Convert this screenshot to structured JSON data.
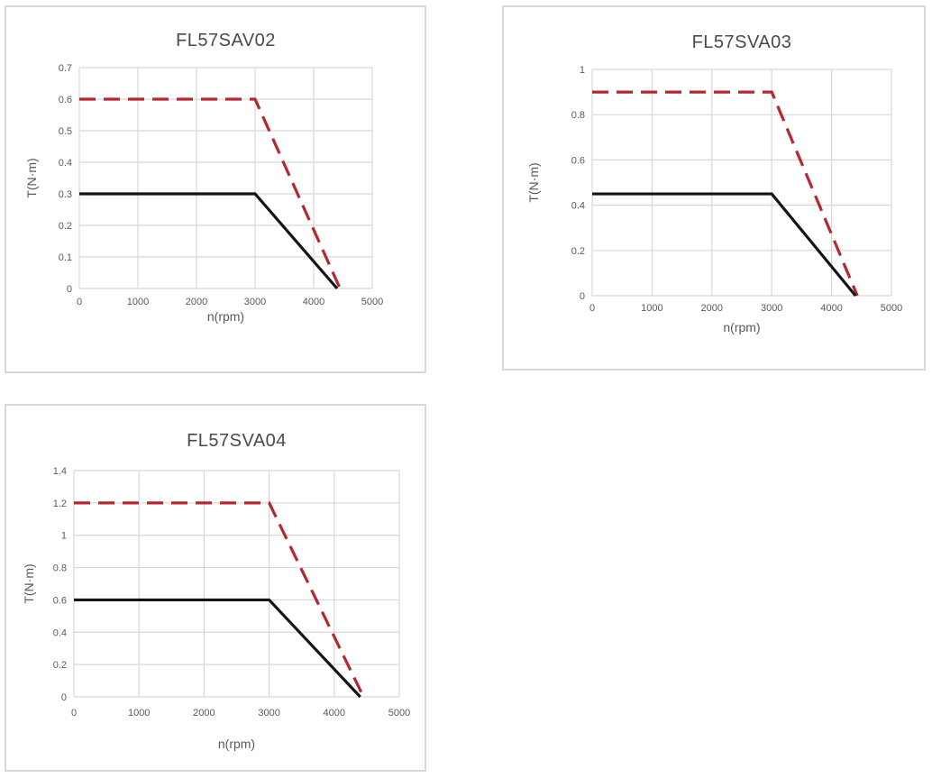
{
  "page": {
    "background": "#ffffff"
  },
  "colors": {
    "peak_line": "#b52731",
    "rated_line": "#141414",
    "grid": "#d8d8d8",
    "card_border": "#d9d9d9",
    "tick_text": "#595959",
    "title_text": "#4a4a4a"
  },
  "chart_data": [
    {
      "type": "line",
      "title": "FL57SAV02",
      "xlabel": "n(rpm)",
      "ylabel": "T(N·m)",
      "xlim": [
        0,
        5000
      ],
      "xtick_step": 1000,
      "ylim": [
        0,
        0.7
      ],
      "ytick_step": 0.1,
      "grid": true,
      "legend_position": "none",
      "series": [
        {
          "name": "peak-torque-dashed",
          "style": "dashed",
          "color_key": "peak_line",
          "points": [
            [
              0,
              0.6
            ],
            [
              3000,
              0.6
            ],
            [
              4450,
              0
            ]
          ]
        },
        {
          "name": "rated-torque-solid",
          "style": "solid",
          "color_key": "rated_line",
          "points": [
            [
              0,
              0.3
            ],
            [
              3000,
              0.3
            ],
            [
              4400,
              0
            ]
          ]
        }
      ]
    },
    {
      "type": "line",
      "title": "FL57SVA03",
      "xlabel": "n(rpm)",
      "ylabel": "T(N·m)",
      "xlim": [
        0,
        5000
      ],
      "xtick_step": 1000,
      "ylim": [
        0,
        1
      ],
      "ytick_step": 0.2,
      "grid": true,
      "legend_position": "none",
      "series": [
        {
          "name": "peak-torque-dashed",
          "style": "dashed",
          "color_key": "peak_line",
          "points": [
            [
              0,
              0.9
            ],
            [
              3000,
              0.9
            ],
            [
              4430,
              0
            ]
          ]
        },
        {
          "name": "rated-torque-solid",
          "style": "solid",
          "color_key": "rated_line",
          "points": [
            [
              0,
              0.45
            ],
            [
              3000,
              0.45
            ],
            [
              4400,
              0
            ]
          ]
        }
      ]
    },
    {
      "type": "line",
      "title": "FL57SVA04",
      "xlabel": "n(rpm)",
      "ylabel": "T(N·m)",
      "xlim": [
        0,
        5000
      ],
      "xtick_step": 1000,
      "ylim": [
        0,
        1.4
      ],
      "ytick_step": 0.2,
      "grid": true,
      "legend_position": "none",
      "series": [
        {
          "name": "peak-torque-dashed",
          "style": "dashed",
          "color_key": "peak_line",
          "points": [
            [
              0,
              1.2
            ],
            [
              3000,
              1.2
            ],
            [
              4450,
              0
            ]
          ]
        },
        {
          "name": "rated-torque-solid",
          "style": "solid",
          "color_key": "rated_line",
          "points": [
            [
              0,
              0.6
            ],
            [
              3000,
              0.6
            ],
            [
              4400,
              0
            ]
          ]
        }
      ]
    }
  ]
}
